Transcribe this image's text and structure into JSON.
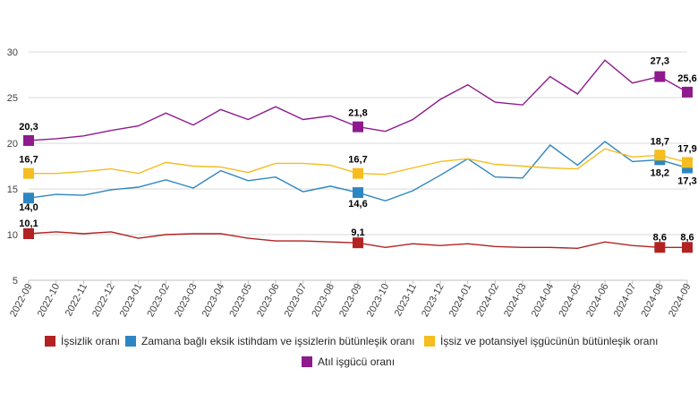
{
  "chart_data": {
    "type": "line",
    "x": [
      "2022-09",
      "2022-10",
      "2022-11",
      "2022-12",
      "2023-01",
      "2023-02",
      "2023-03",
      "2023-04",
      "2023-05",
      "2023-06",
      "2023-07",
      "2023-08",
      "2023-09",
      "2023-10",
      "2023-11",
      "2023-12",
      "2024-01",
      "2024-02",
      "2024-03",
      "2024-04",
      "2024-05",
      "2024-06",
      "2024-07",
      "2024-08",
      "2024-09"
    ],
    "ylim": [
      5,
      30
    ],
    "yticks": [
      5,
      10,
      15,
      20,
      25,
      30
    ],
    "grid": true,
    "legend_position": "bottom",
    "series": [
      {
        "name": "İşsizlik oranı",
        "color": "#b22222",
        "values": [
          10.1,
          10.3,
          10.1,
          10.3,
          9.6,
          10.0,
          10.1,
          10.1,
          9.6,
          9.3,
          9.3,
          9.2,
          9.1,
          8.6,
          9.0,
          8.8,
          9.0,
          8.7,
          8.6,
          8.6,
          8.5,
          9.2,
          8.8,
          8.6,
          8.6
        ],
        "labeled_indices": [
          0,
          12,
          23,
          24
        ],
        "labels": [
          "10,1",
          "9,1",
          "8,6",
          "8,6"
        ]
      },
      {
        "name": "Zamana bağlı eksik istihdam ve işsizlerin bütünleşik oranı",
        "color": "#2e86c1",
        "values": [
          14.0,
          14.4,
          14.3,
          14.9,
          15.2,
          16.0,
          15.1,
          17.0,
          15.9,
          16.3,
          14.7,
          15.3,
          14.6,
          13.7,
          14.8,
          16.5,
          18.3,
          16.3,
          16.2,
          19.8,
          17.6,
          20.2,
          18.0,
          18.2,
          17.3
        ],
        "labeled_indices": [
          0,
          12,
          23,
          24
        ],
        "labels": [
          "14,0",
          "14,6",
          "18,2",
          "17,3"
        ]
      },
      {
        "name": "İşsiz ve potansiyel işgücünün bütünleşik oranı",
        "color": "#f5bd1f",
        "values": [
          16.7,
          16.7,
          16.9,
          17.2,
          16.7,
          17.9,
          17.5,
          17.4,
          16.8,
          17.8,
          17.8,
          17.6,
          16.7,
          16.6,
          17.3,
          18.0,
          18.3,
          17.7,
          17.5,
          17.3,
          17.2,
          19.4,
          18.5,
          18.7,
          17.9
        ],
        "labeled_indices": [
          0,
          12,
          23,
          24
        ],
        "labels": [
          "16,7",
          "16,7",
          "18,7",
          "17,9"
        ]
      },
      {
        "name": "Atıl işgücü oranı",
        "color": "#8e1a8e",
        "values": [
          20.3,
          20.5,
          20.8,
          21.4,
          21.9,
          23.3,
          22.0,
          23.7,
          22.6,
          24.0,
          22.6,
          23.0,
          21.8,
          21.3,
          22.6,
          24.8,
          26.4,
          24.5,
          24.2,
          27.3,
          25.4,
          29.1,
          26.6,
          27.3,
          25.6
        ],
        "labeled_indices": [
          0,
          12,
          23,
          24
        ],
        "labels": [
          "20,3",
          "21,8",
          "27,3",
          "25,6"
        ]
      }
    ]
  }
}
